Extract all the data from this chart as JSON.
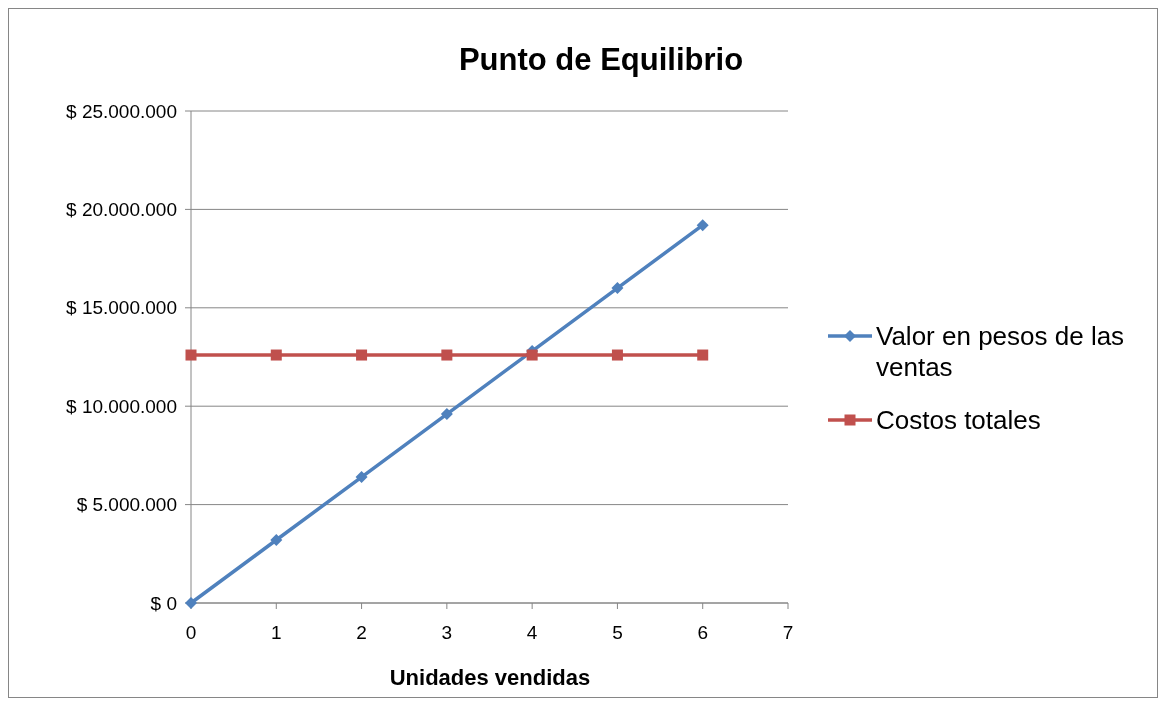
{
  "chart_data": {
    "type": "line",
    "title": "Punto de Equilibrio",
    "xlabel": "Unidades vendidas",
    "x": [
      0,
      1,
      2,
      3,
      4,
      5,
      6
    ],
    "series": [
      {
        "name": "Valor en pesos de las ventas",
        "color": "#4f81bd",
        "marker": "diamond",
        "values": [
          0,
          3200000,
          6400000,
          9600000,
          12800000,
          16000000,
          19200000
        ]
      },
      {
        "name": "Costos totales",
        "color": "#c0504d",
        "marker": "square",
        "values": [
          12600000,
          12600000,
          12600000,
          12600000,
          12600000,
          12600000,
          12600000
        ]
      }
    ],
    "xlim": [
      0,
      7
    ],
    "xticks": [
      0,
      1,
      2,
      3,
      4,
      5,
      6,
      7
    ],
    "ylim": [
      0,
      25000000
    ],
    "yticks": [
      {
        "value": 0,
        "label": "$ 0"
      },
      {
        "value": 5000000,
        "label": "$ 5.000.000"
      },
      {
        "value": 10000000,
        "label": "$ 10.000.000"
      },
      {
        "value": 15000000,
        "label": "$ 15.000.000"
      },
      {
        "value": 20000000,
        "label": "$ 20.000.000"
      },
      {
        "value": 25000000,
        "label": "$ 25.000.000"
      }
    ],
    "grid": "y",
    "legend": "right",
    "line_style": "solid"
  }
}
